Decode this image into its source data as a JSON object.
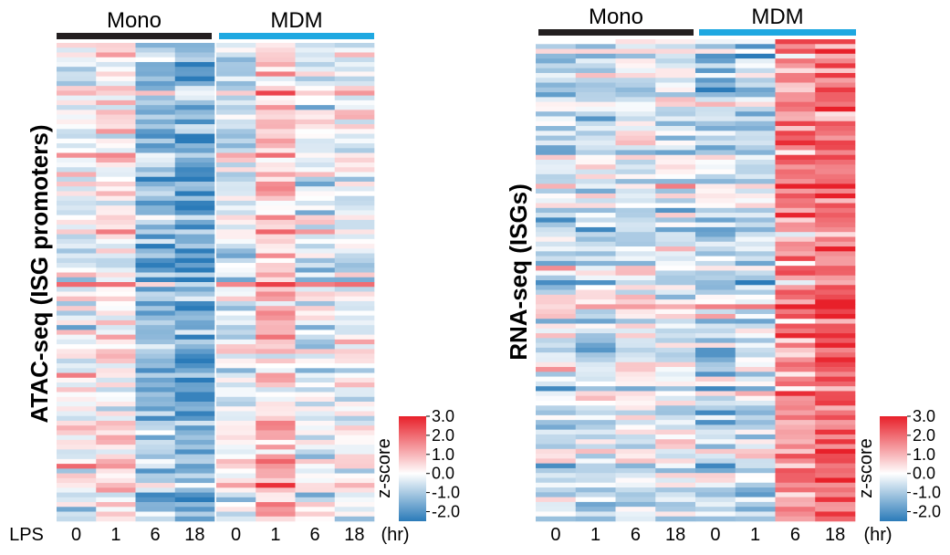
{
  "colors": {
    "low": "#2b7bb9",
    "mid": "#ffffff",
    "high": "#e8202a",
    "mono_bar": "#231f20",
    "mdm_bar": "#1fa8e1"
  },
  "panels": [
    {
      "id": "atac",
      "ylabel": "ATAC-seq (ISG promoters)",
      "groups": [
        {
          "label": "Mono"
        },
        {
          "label": "MDM"
        }
      ],
      "row_label": "LPS",
      "columns": [
        "0",
        "1",
        "6",
        "18",
        "0",
        "1",
        "6",
        "18"
      ],
      "unit": "(hr)",
      "rows": 100,
      "column_means": [
        0.0,
        0.5,
        -1.1,
        -1.6,
        -0.25,
        0.9,
        -0.1,
        0.05
      ],
      "seed": 11,
      "split_after_column": 4
    },
    {
      "id": "rna",
      "ylabel": "RNA-seq (ISGs)",
      "groups": [
        {
          "label": "Mono"
        },
        {
          "label": "MDM"
        }
      ],
      "row_label": "",
      "columns": [
        "0",
        "1",
        "6",
        "18",
        "0",
        "1",
        "6",
        "18"
      ],
      "unit": "(hr)",
      "rows": 100,
      "column_means": [
        -0.6,
        -0.5,
        -0.3,
        -0.4,
        -0.7,
        -0.6,
        1.4,
        1.9
      ],
      "seed": 29,
      "split_after_column": 0
    }
  ],
  "colorbar": {
    "title": "z-score",
    "ticks": [
      "3.0",
      "2.0",
      "1.0",
      "0.0",
      "-1.0",
      "-2.0"
    ],
    "range": [
      -2.5,
      3.0
    ]
  },
  "chart_data": [
    {
      "type": "heatmap",
      "title": "",
      "ylabel": "ATAC-seq (ISG promoters)",
      "x_groups": [
        "Mono",
        "MDM"
      ],
      "x": [
        "0",
        "1",
        "6",
        "18",
        "0",
        "1",
        "6",
        "18"
      ],
      "xlabel": "LPS (hr)",
      "approx_column_mean_zscore": [
        0.0,
        0.5,
        -1.1,
        -1.6,
        -0.25,
        0.9,
        -0.1,
        0.05
      ],
      "zlabel": "z-score",
      "zlim": [
        -2.5,
        3.0
      ]
    },
    {
      "type": "heatmap",
      "title": "",
      "ylabel": "RNA-seq (ISGs)",
      "x_groups": [
        "Mono",
        "MDM"
      ],
      "x": [
        "0",
        "1",
        "6",
        "18",
        "0",
        "1",
        "6",
        "18"
      ],
      "xlabel": "(hr)",
      "approx_column_mean_zscore": [
        -0.6,
        -0.5,
        -0.3,
        -0.4,
        -0.7,
        -0.6,
        1.4,
        1.9
      ],
      "zlabel": "z-score",
      "zlim": [
        -2.5,
        3.0
      ]
    }
  ]
}
